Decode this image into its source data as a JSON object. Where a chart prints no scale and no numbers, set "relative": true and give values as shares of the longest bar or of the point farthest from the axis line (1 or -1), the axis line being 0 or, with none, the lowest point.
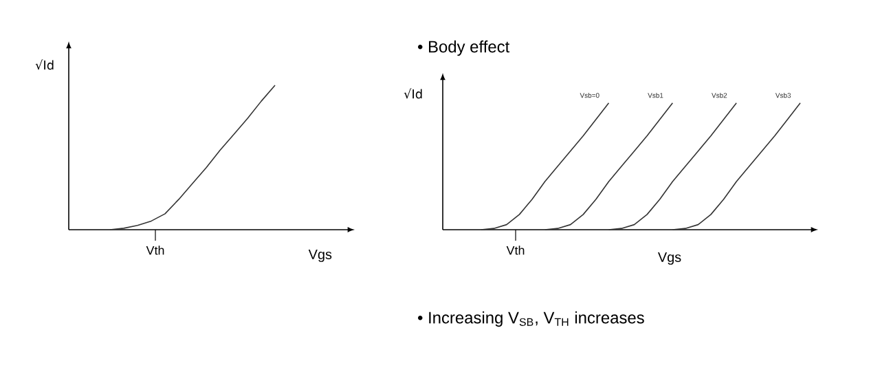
{
  "chart_data": [
    {
      "type": "line",
      "relative": true,
      "xlabel": "Vgs",
      "ylabel": "√Id",
      "annotations": [
        "Vth"
      ],
      "categories": [
        null,
        null,
        null,
        null,
        null,
        null,
        null,
        null,
        null,
        null,
        null,
        null,
        null,
        null,
        null,
        null,
        null,
        null,
        null,
        null,
        null
      ],
      "series": [
        {
          "color": "#333333",
          "values": [
            null,
            null,
            null,
            0,
            0.01,
            0.03,
            0.06,
            0.11,
            0.21,
            0.32,
            0.43,
            0.55,
            0.66,
            0.77,
            0.89,
            1,
            null,
            null,
            null,
            null,
            null
          ]
        }
      ]
    },
    {
      "type": "line",
      "relative": true,
      "title": "• Body effect",
      "xlabel": "Vgs",
      "ylabel": "√Id",
      "annotations": [
        "Vth",
        "• Increasing V$_{SB}$, V$_{TH}$ increases"
      ],
      "categories": [
        null,
        null,
        null,
        null,
        null,
        null,
        null,
        null,
        null,
        null,
        null,
        null,
        null,
        null,
        null,
        null,
        null,
        null,
        null,
        null,
        null,
        null,
        null,
        null,
        null,
        null,
        null,
        null,
        null
      ],
      "series": [
        {
          "name": "Vsb=0",
          "color": "#333333",
          "values": [
            null,
            null,
            null,
            0,
            0.01,
            0.04,
            0.12,
            0.24,
            0.38,
            0.5,
            0.62,
            0.74,
            0.87,
            1,
            null,
            null,
            null,
            null,
            null,
            null,
            null,
            null,
            null,
            null,
            null,
            null,
            null,
            null,
            null
          ]
        },
        {
          "name": "Vsb1",
          "color": "#333333",
          "values": [
            null,
            null,
            null,
            null,
            null,
            null,
            null,
            null,
            0,
            0.01,
            0.04,
            0.12,
            0.24,
            0.38,
            0.5,
            0.62,
            0.74,
            0.87,
            1,
            null,
            null,
            null,
            null,
            null,
            null,
            null,
            null,
            null,
            null
          ]
        },
        {
          "name": "Vsb2",
          "color": "#333333",
          "values": [
            null,
            null,
            null,
            null,
            null,
            null,
            null,
            null,
            null,
            null,
            null,
            null,
            null,
            0,
            0.01,
            0.04,
            0.12,
            0.24,
            0.38,
            0.5,
            0.62,
            0.74,
            0.87,
            1,
            null,
            null,
            null,
            null,
            null
          ]
        },
        {
          "name": "Vsb3",
          "color": "#333333",
          "values": [
            null,
            null,
            null,
            null,
            null,
            null,
            null,
            null,
            null,
            null,
            null,
            null,
            null,
            null,
            null,
            null,
            null,
            null,
            0,
            0.01,
            0.04,
            0.12,
            0.24,
            0.38,
            0.5,
            0.62,
            0.74,
            0.87,
            1
          ]
        }
      ]
    }
  ]
}
